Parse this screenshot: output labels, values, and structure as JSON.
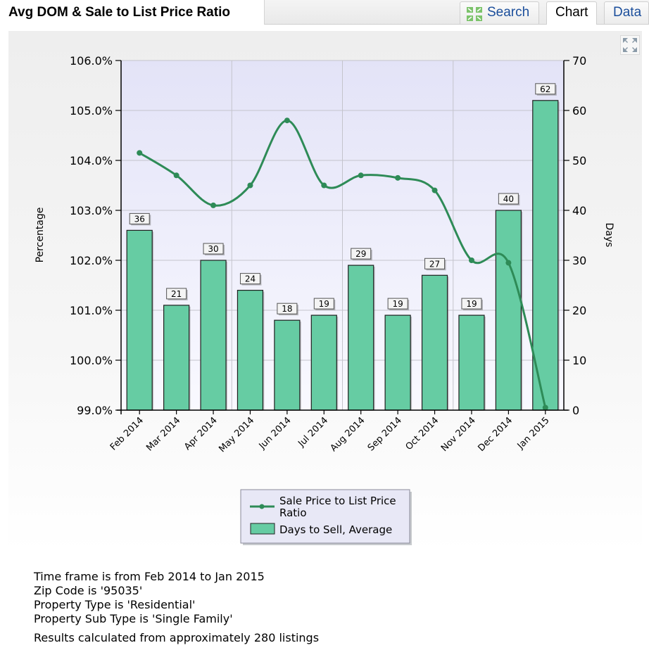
{
  "header": {
    "title": "Avg DOM & Sale to List Price Ratio",
    "tabs": {
      "search": "Search",
      "chart": "Chart",
      "data": "Data"
    }
  },
  "chart_data": {
    "type": "bar",
    "categories": [
      "Feb 2014",
      "Mar 2014",
      "Apr 2014",
      "May 2014",
      "Jun 2014",
      "Jul 2014",
      "Aug 2014",
      "Sep 2014",
      "Oct 2014",
      "Nov 2014",
      "Dec 2014",
      "Jan 2015"
    ],
    "series": [
      {
        "name": "Days to Sell, Average",
        "type": "bar",
        "axis": "right",
        "values": [
          36,
          21,
          30,
          24,
          18,
          19,
          29,
          19,
          27,
          19,
          40,
          62
        ],
        "labels": [
          "36",
          "21",
          "30",
          "24",
          "18",
          "19",
          "29",
          "19",
          "27",
          "19",
          "40",
          "62"
        ],
        "color": "#66cca3"
      },
      {
        "name": "Sale Price to List Price Ratio",
        "type": "line",
        "axis": "left",
        "values": [
          104.15,
          103.7,
          103.1,
          103.5,
          104.8,
          103.5,
          103.7,
          103.65,
          103.4,
          102.0,
          101.95,
          99.05
        ],
        "color": "#2e8b57"
      }
    ],
    "ylabel": "Percentage",
    "ylabel_right": "Days",
    "ylim": [
      99.0,
      106.0
    ],
    "ylim_right": [
      0,
      70
    ],
    "yticks": [
      "99.0%",
      "100.0%",
      "101.0%",
      "102.0%",
      "103.0%",
      "104.0%",
      "105.0%",
      "106.0%"
    ],
    "yticks_right": [
      "0",
      "10",
      "20",
      "30",
      "40",
      "50",
      "60",
      "70"
    ],
    "grid": true,
    "legend_position": "bottom-center"
  },
  "info": {
    "line1": "Time frame is from Feb 2014 to Jan 2015",
    "line2": "Zip Code is '95035'",
    "line3": "Property Type is 'Residential'",
    "line4": "Property Sub Type is 'Single Family'",
    "line5": "Results calculated from approximately 280 listings"
  },
  "icons": {
    "search": "search-icon",
    "expand": "expand-icon"
  }
}
